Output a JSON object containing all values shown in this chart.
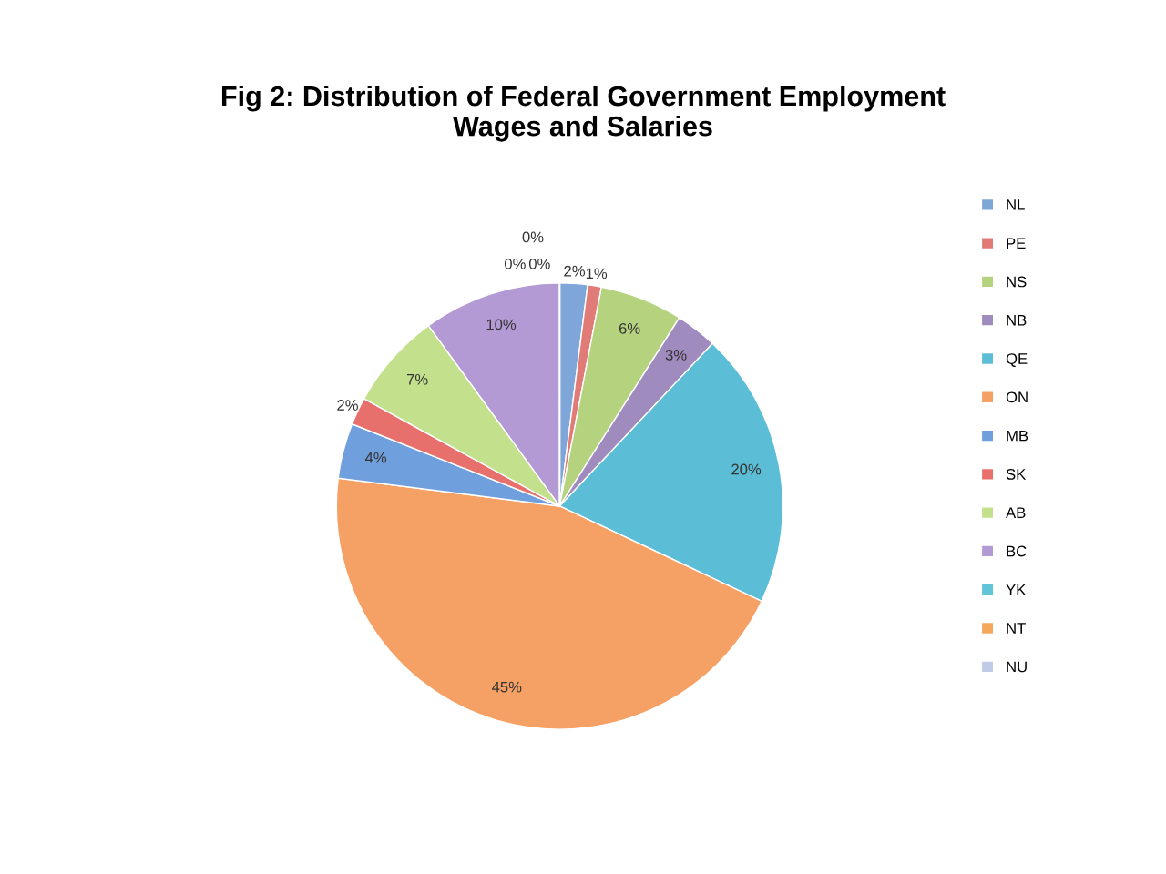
{
  "chart_data": {
    "type": "pie",
    "title": "Fig 2: Distribution of Federal Government Employment\nWages and Salaries",
    "categories": [
      "NL",
      "PE",
      "NS",
      "NB",
      "QE",
      "ON",
      "MB",
      "SK",
      "AB",
      "BC",
      "YK",
      "NT",
      "NU"
    ],
    "values": [
      2,
      1,
      6,
      3,
      20,
      45,
      4,
      2,
      7,
      10,
      0,
      0,
      0
    ],
    "value_labels": [
      "2%",
      "1%",
      "6%",
      "3%",
      "20%",
      "45%",
      "4%",
      "2%",
      "7%",
      "10%",
      "0%",
      "0%",
      "0%"
    ],
    "colors": [
      "#7fa6d8",
      "#e07b78",
      "#b5d27f",
      "#a08bbf",
      "#5cbdd6",
      "#f5a064",
      "#6f9fdc",
      "#e8706c",
      "#c3e08c",
      "#b49ad4",
      "#62c4d8",
      "#f5a85c",
      "#c0cbe8"
    ],
    "legend": "right"
  }
}
